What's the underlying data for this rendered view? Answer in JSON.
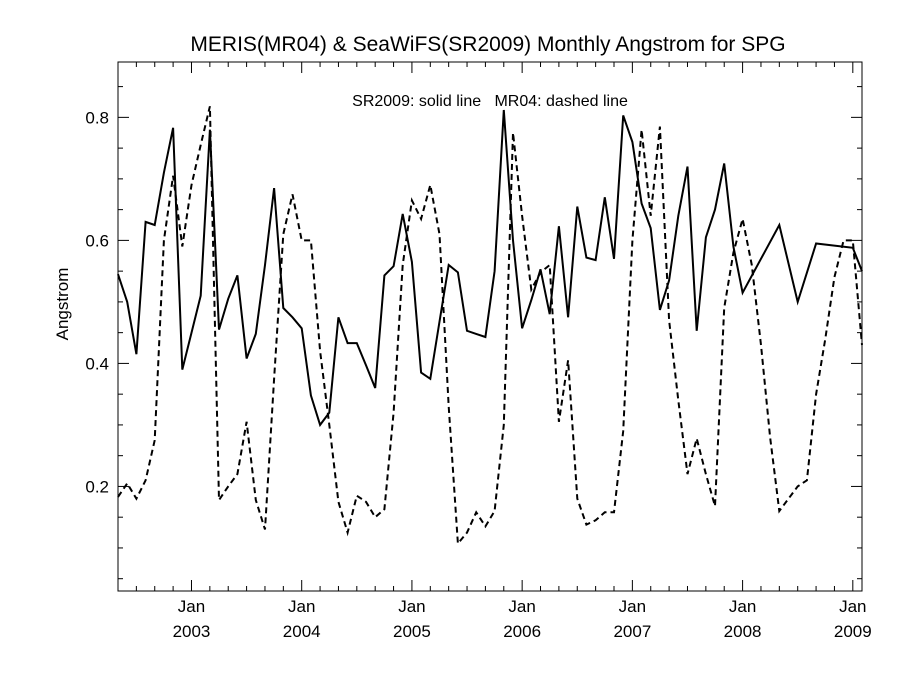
{
  "chart_data": {
    "type": "line",
    "title": "MERIS(MR04) & SeaWiFS(SR2009) Monthly Angstrom for SPG",
    "ylabel": "Angstrom",
    "xlabel": "",
    "annotation": "SR2009: solid line   MR04: dashed line",
    "xlim": [
      "2002-05",
      "2009-02"
    ],
    "ylim": [
      0.03,
      0.89
    ],
    "yticks": [
      0.2,
      0.4,
      0.6,
      0.8
    ],
    "ytick_labels": [
      "0.2",
      "0.4",
      "0.6",
      "0.8"
    ],
    "xticks": [
      {
        "x": "2003-01",
        "month": "Jan",
        "year": "2003"
      },
      {
        "x": "2004-01",
        "month": "Jan",
        "year": "2004"
      },
      {
        "x": "2005-01",
        "month": "Jan",
        "year": "2005"
      },
      {
        "x": "2006-01",
        "month": "Jan",
        "year": "2006"
      },
      {
        "x": "2007-01",
        "month": "Jan",
        "year": "2007"
      },
      {
        "x": "2008-01",
        "month": "Jan",
        "year": "2008"
      },
      {
        "x": "2009-01",
        "month": "Jan",
        "year": "2009"
      }
    ],
    "grid": false,
    "series": [
      {
        "name": "SR2009",
        "style": "solid",
        "color": "#000000",
        "points": [
          [
            "2002-05",
            0.545
          ],
          [
            "2002-06",
            0.5
          ],
          [
            "2002-07",
            0.415
          ],
          [
            "2002-08",
            0.63
          ],
          [
            "2002-09",
            0.625
          ],
          [
            "2002-10",
            0.71
          ],
          [
            "2002-11",
            0.783
          ],
          [
            "2002-12",
            0.39
          ],
          [
            "2003-01",
            0.45
          ],
          [
            "2003-02",
            0.51
          ],
          [
            "2003-03",
            0.78
          ],
          [
            "2003-04",
            0.455
          ],
          [
            "2003-05",
            0.505
          ],
          [
            "2003-06",
            0.543
          ],
          [
            "2003-07",
            0.408
          ],
          [
            "2003-08",
            0.448
          ],
          [
            "2003-09",
            0.56
          ],
          [
            "2003-10",
            0.685
          ],
          [
            "2003-11",
            0.49
          ],
          [
            "2003-12",
            0.475
          ],
          [
            "2004-01",
            0.457
          ],
          [
            "2004-02",
            0.348
          ],
          [
            "2004-03",
            0.3
          ],
          [
            "2004-04",
            0.32
          ],
          [
            "2004-05",
            0.475
          ],
          [
            "2004-06",
            0.433
          ],
          [
            "2004-07",
            0.433
          ],
          [
            "2004-08",
            0.397
          ],
          [
            "2004-09",
            0.36
          ],
          [
            "2004-10",
            0.543
          ],
          [
            "2004-11",
            0.558
          ],
          [
            "2004-12",
            0.643
          ],
          [
            "2005-01",
            0.565
          ],
          [
            "2005-02",
            0.385
          ],
          [
            "2005-03",
            0.375
          ],
          [
            "2005-04",
            0.468
          ],
          [
            "2005-05",
            0.56
          ],
          [
            "2005-06",
            0.548
          ],
          [
            "2005-07",
            0.453
          ],
          [
            "2005-08",
            0.448
          ],
          [
            "2005-09",
            0.443
          ],
          [
            "2005-10",
            0.55
          ],
          [
            "2005-11",
            0.812
          ],
          [
            "2005-12",
            0.6
          ],
          [
            "2006-01",
            0.457
          ],
          [
            "2006-02",
            0.503
          ],
          [
            "2006-03",
            0.553
          ],
          [
            "2006-04",
            0.48
          ],
          [
            "2006-05",
            0.623
          ],
          [
            "2006-06",
            0.475
          ],
          [
            "2006-07",
            0.655
          ],
          [
            "2006-08",
            0.572
          ],
          [
            "2006-09",
            0.568
          ],
          [
            "2006-10",
            0.67
          ],
          [
            "2006-11",
            0.57
          ],
          [
            "2006-12",
            0.803
          ],
          [
            "2007-01",
            0.76
          ],
          [
            "2007-02",
            0.66
          ],
          [
            "2007-03",
            0.62
          ],
          [
            "2007-04",
            0.487
          ],
          [
            "2007-05",
            0.535
          ],
          [
            "2007-06",
            0.64
          ],
          [
            "2007-07",
            0.72
          ],
          [
            "2007-08",
            0.453
          ],
          [
            "2007-09",
            0.605
          ],
          [
            "2007-10",
            0.65
          ],
          [
            "2007-11",
            0.725
          ],
          [
            "2007-12",
            0.59
          ],
          [
            "2008-01",
            0.515
          ],
          [
            "2008-05",
            0.625
          ],
          [
            "2008-07",
            0.5
          ],
          [
            "2008-09",
            0.595
          ],
          [
            "2009-01",
            0.588
          ],
          [
            "2009-02",
            0.55
          ]
        ]
      },
      {
        "name": "MR04",
        "style": "dashed",
        "color": "#000000",
        "points": [
          [
            "2002-05",
            0.183
          ],
          [
            "2002-06",
            0.205
          ],
          [
            "2002-07",
            0.18
          ],
          [
            "2002-08",
            0.21
          ],
          [
            "2002-09",
            0.275
          ],
          [
            "2002-10",
            0.6
          ],
          [
            "2002-11",
            0.705
          ],
          [
            "2002-12",
            0.59
          ],
          [
            "2003-01",
            0.69
          ],
          [
            "2003-02",
            0.755
          ],
          [
            "2003-03",
            0.818
          ],
          [
            "2003-04",
            0.178
          ],
          [
            "2003-05",
            0.2
          ],
          [
            "2003-06",
            0.22
          ],
          [
            "2003-07",
            0.305
          ],
          [
            "2003-08",
            0.178
          ],
          [
            "2003-09",
            0.13
          ],
          [
            "2003-10",
            0.375
          ],
          [
            "2003-11",
            0.61
          ],
          [
            "2003-12",
            0.675
          ],
          [
            "2004-01",
            0.6
          ],
          [
            "2004-02",
            0.6
          ],
          [
            "2004-03",
            0.42
          ],
          [
            "2004-04",
            0.3
          ],
          [
            "2004-05",
            0.175
          ],
          [
            "2004-06",
            0.125
          ],
          [
            "2004-07",
            0.185
          ],
          [
            "2004-08",
            0.175
          ],
          [
            "2004-09",
            0.15
          ],
          [
            "2004-10",
            0.163
          ],
          [
            "2004-11",
            0.32
          ],
          [
            "2004-12",
            0.56
          ],
          [
            "2005-01",
            0.665
          ],
          [
            "2005-02",
            0.635
          ],
          [
            "2005-03",
            0.69
          ],
          [
            "2005-04",
            0.61
          ],
          [
            "2005-05",
            0.33
          ],
          [
            "2005-06",
            0.107
          ],
          [
            "2005-07",
            0.125
          ],
          [
            "2005-08",
            0.158
          ],
          [
            "2005-09",
            0.135
          ],
          [
            "2005-10",
            0.16
          ],
          [
            "2005-11",
            0.3
          ],
          [
            "2005-12",
            0.775
          ],
          [
            "2006-01",
            0.64
          ],
          [
            "2006-02",
            0.52
          ],
          [
            "2006-03",
            0.548
          ],
          [
            "2006-04",
            0.56
          ],
          [
            "2006-05",
            0.305
          ],
          [
            "2006-06",
            0.405
          ],
          [
            "2006-07",
            0.18
          ],
          [
            "2006-08",
            0.138
          ],
          [
            "2006-09",
            0.145
          ],
          [
            "2006-10",
            0.158
          ],
          [
            "2006-11",
            0.158
          ],
          [
            "2006-12",
            0.29
          ],
          [
            "2007-01",
            0.6
          ],
          [
            "2007-02",
            0.78
          ],
          [
            "2007-03",
            0.64
          ],
          [
            "2007-04",
            0.785
          ],
          [
            "2007-05",
            0.47
          ],
          [
            "2007-06",
            0.34
          ],
          [
            "2007-07",
            0.22
          ],
          [
            "2007-08",
            0.278
          ],
          [
            "2007-09",
            0.22
          ],
          [
            "2007-10",
            0.168
          ],
          [
            "2007-11",
            0.49
          ],
          [
            "2007-12",
            0.58
          ],
          [
            "2008-01",
            0.635
          ],
          [
            "2008-02",
            0.56
          ],
          [
            "2008-03",
            0.43
          ],
          [
            "2008-04",
            0.28
          ],
          [
            "2008-05",
            0.16
          ],
          [
            "2008-06",
            0.18
          ],
          [
            "2008-07",
            0.2
          ],
          [
            "2008-08",
            0.21
          ],
          [
            "2008-09",
            0.35
          ],
          [
            "2008-10",
            0.44
          ],
          [
            "2008-11",
            0.54
          ],
          [
            "2008-12",
            0.6
          ],
          [
            "2009-01",
            0.6
          ],
          [
            "2009-02",
            0.43
          ]
        ]
      }
    ]
  }
}
